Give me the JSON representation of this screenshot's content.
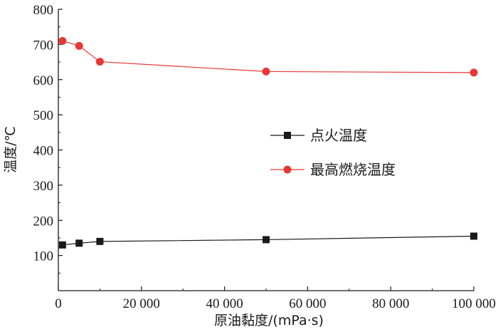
{
  "chart_data": {
    "type": "line",
    "title": "",
    "xlabel": "原油黏度/(mPa·s)",
    "ylabel": "温度/℃",
    "xlim": [
      0,
      100000
    ],
    "ylim": [
      0,
      800
    ],
    "x_ticks": [
      0,
      20000,
      40000,
      60000,
      80000,
      100000
    ],
    "x_tick_labels": [
      "0",
      "20 000",
      "40 000",
      "60 000",
      "80 000",
      "100 000"
    ],
    "y_ticks": [
      100,
      200,
      300,
      400,
      500,
      600,
      700,
      800
    ],
    "y_tick_labels": [
      "100",
      "200",
      "300",
      "400",
      "500",
      "600",
      "700",
      "800"
    ],
    "grid": false,
    "legend_position": "center-right",
    "series": [
      {
        "name": "点火温度",
        "color": "#1a1a1a",
        "marker": "square",
        "x": [
          1000,
          5000,
          10000,
          50000,
          100000
        ],
        "y": [
          130,
          135,
          140,
          145,
          155
        ]
      },
      {
        "name": "最高燃烧温度",
        "color": "#e53935",
        "marker": "circle",
        "x": [
          1000,
          5000,
          10000,
          50000,
          100000
        ],
        "y": [
          710,
          696,
          651,
          623,
          620
        ]
      }
    ]
  }
}
